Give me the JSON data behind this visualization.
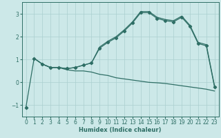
{
  "xlabel": "Humidex (Indice chaleur)",
  "bg_color": "#cce8e8",
  "line_color": "#2e6e65",
  "grid_color": "#aacfcf",
  "xlim": [
    -0.5,
    23.5
  ],
  "ylim": [
    -1.5,
    3.5
  ],
  "xticks": [
    0,
    1,
    2,
    3,
    4,
    5,
    6,
    7,
    8,
    9,
    10,
    11,
    12,
    13,
    14,
    15,
    16,
    17,
    18,
    19,
    20,
    21,
    22,
    23
  ],
  "yticks": [
    -1,
    0,
    1,
    2,
    3
  ],
  "line_main_x": [
    0,
    1,
    2,
    3,
    4,
    5,
    6,
    7,
    8,
    9,
    10,
    11,
    12,
    13,
    14,
    15,
    16,
    17,
    18,
    19,
    20,
    21,
    22,
    23
  ],
  "line_main_y": [
    -1.1,
    1.05,
    0.8,
    0.65,
    0.65,
    0.6,
    0.65,
    0.75,
    0.85,
    1.5,
    1.75,
    1.95,
    2.25,
    2.6,
    3.05,
    3.05,
    2.8,
    2.7,
    2.65,
    2.85,
    2.45,
    1.7,
    1.6,
    -0.2
  ],
  "line_upper_x": [
    1,
    2,
    3,
    4,
    5,
    6,
    7,
    8,
    9,
    10,
    11,
    12,
    13,
    14,
    15,
    16,
    17,
    18,
    19,
    20,
    21,
    22,
    23
  ],
  "line_upper_y": [
    1.05,
    0.8,
    0.65,
    0.65,
    0.6,
    0.65,
    0.75,
    0.85,
    1.55,
    1.8,
    2.0,
    2.3,
    2.65,
    3.1,
    3.1,
    2.85,
    2.75,
    2.7,
    2.9,
    2.5,
    1.75,
    1.65,
    -0.15
  ],
  "line_lower_x": [
    1,
    2,
    3,
    4,
    5,
    6,
    7,
    8,
    9,
    10,
    11,
    12,
    13,
    14,
    15,
    16,
    17,
    18,
    19,
    20,
    21,
    22,
    23
  ],
  "line_lower_y": [
    1.05,
    0.8,
    0.65,
    0.65,
    0.55,
    0.5,
    0.5,
    0.45,
    0.35,
    0.3,
    0.2,
    0.15,
    0.1,
    0.05,
    0.0,
    -0.02,
    -0.05,
    -0.1,
    -0.15,
    -0.2,
    -0.25,
    -0.3,
    -0.38
  ]
}
